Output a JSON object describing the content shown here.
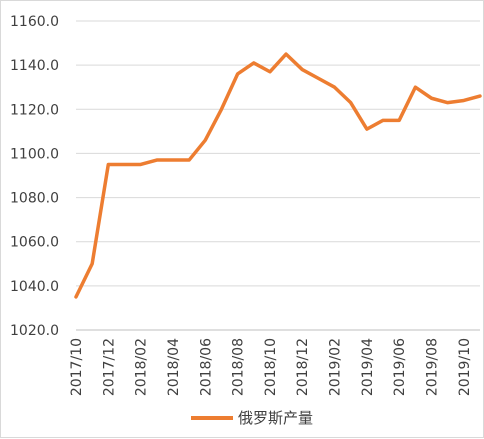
{
  "chart_data": {
    "type": "line",
    "title": "",
    "xlabel": "",
    "ylabel": "",
    "ylim": [
      1020.0,
      1160.0
    ],
    "y_ticks": [
      "1020.0",
      "1040.0",
      "1060.0",
      "1080.0",
      "1100.0",
      "1120.0",
      "1140.0",
      "1160.0"
    ],
    "x": [
      "2017/10",
      "2017/11",
      "2017/12",
      "2018/01",
      "2018/02",
      "2018/03",
      "2018/04",
      "2018/05",
      "2018/06",
      "2018/07",
      "2018/08",
      "2018/09",
      "2018/10",
      "2018/11",
      "2018/12",
      "2019/01",
      "2019/02",
      "2019/03",
      "2019/04",
      "2019/05",
      "2019/06",
      "2019/07",
      "2019/08",
      "2019/09",
      "2019/10",
      "2019/11"
    ],
    "x_tick_labels": [
      "2017/10",
      "2017/12",
      "2018/02",
      "2018/04",
      "2018/06",
      "2018/08",
      "2018/10",
      "2018/12",
      "2019/02",
      "2019/04",
      "2019/06",
      "2019/08",
      "2019/10"
    ],
    "grid": true,
    "legend_position": "bottom",
    "series": [
      {
        "name": "俄罗斯产量",
        "color": "#ed7d31",
        "values": [
          1035,
          1050,
          1095,
          1095,
          1095,
          1097,
          1097,
          1097,
          1106,
          1120,
          1136,
          1141,
          1137,
          1145,
          1138,
          1134,
          1130,
          1123,
          1111,
          1115,
          1115,
          1130,
          1125,
          1123,
          1124,
          1126
        ]
      }
    ]
  }
}
